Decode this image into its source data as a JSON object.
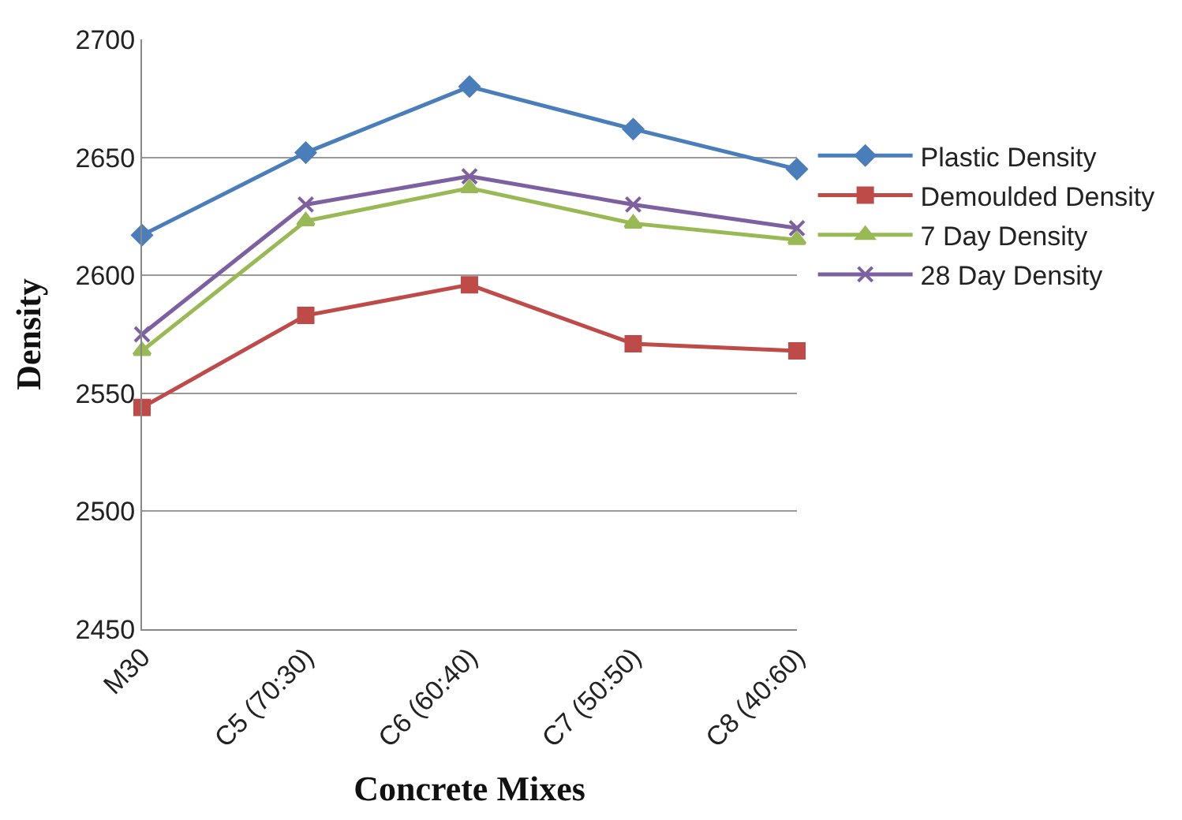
{
  "chart_data": {
    "type": "line",
    "xlabel": "Concrete Mixes",
    "ylabel": "Density",
    "categories": [
      "M30",
      "C5 (70:30)",
      "C6 (60:40)",
      "C7 (50:50)",
      "C8 (40:60)"
    ],
    "series": [
      {
        "name": "Plastic Density",
        "color": "#4a7ebb",
        "marker": "diamond",
        "values": [
          2617,
          2652,
          2680,
          2662,
          2645
        ]
      },
      {
        "name": "Demoulded Density",
        "color": "#be4b48",
        "marker": "square",
        "values": [
          2544,
          2583,
          2596,
          2571,
          2568
        ]
      },
      {
        "name": "7 Day Density",
        "color": "#98b954",
        "marker": "triangle",
        "values": [
          2568,
          2623,
          2637,
          2622,
          2615
        ]
      },
      {
        "name": "28 Day Density",
        "color": "#7d60a0",
        "marker": "cross",
        "values": [
          2575,
          2630,
          2642,
          2630,
          2620
        ]
      }
    ],
    "ylim": [
      2450,
      2700
    ],
    "yticks": [
      2450,
      2500,
      2550,
      2600,
      2650,
      2700
    ],
    "grid": "y",
    "legend": "right",
    "line_style": "solid"
  }
}
